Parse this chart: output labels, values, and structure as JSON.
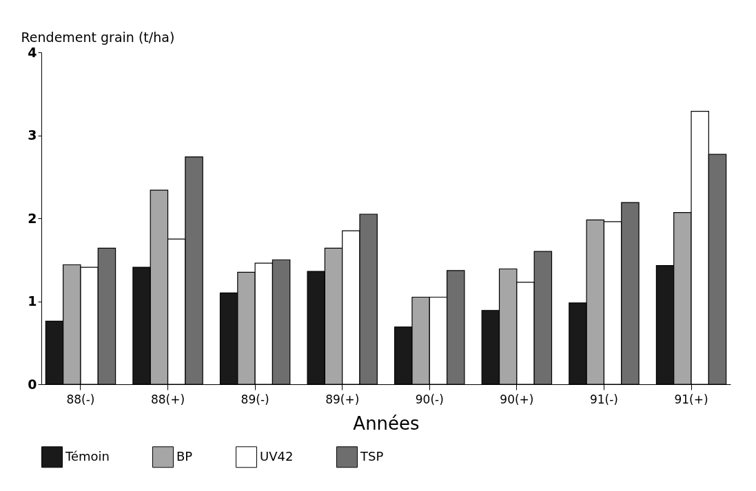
{
  "chart_data": {
    "type": "bar",
    "xlabel": "Années",
    "ylabel": "Rendement grain (t/ha)",
    "categories": [
      "88(-)",
      "88(+)",
      "89(-)",
      "89(+)",
      "90(-)",
      "90(+)",
      "91(-)",
      "91(+)"
    ],
    "series": [
      {
        "name": "Témoin",
        "color": "#1a1a1a",
        "values": [
          0.76,
          1.41,
          1.1,
          1.36,
          0.69,
          0.89,
          0.98,
          1.43
        ]
      },
      {
        "name": "BP",
        "color": "#a6a6a6",
        "values": [
          1.44,
          2.34,
          1.35,
          1.64,
          1.05,
          1.39,
          1.98,
          2.07
        ]
      },
      {
        "name": "UV42",
        "color": "#ffffff",
        "values": [
          1.41,
          1.75,
          1.46,
          1.85,
          1.05,
          1.23,
          1.96,
          3.29
        ]
      },
      {
        "name": "TSP",
        "color": "#6e6e6e",
        "values": [
          1.64,
          2.74,
          1.5,
          2.05,
          1.37,
          1.6,
          2.19,
          2.77
        ]
      }
    ],
    "ylim": [
      0,
      4
    ],
    "yticks": [
      0,
      1,
      2,
      3,
      4
    ],
    "grid": false,
    "legend": "bottom"
  }
}
